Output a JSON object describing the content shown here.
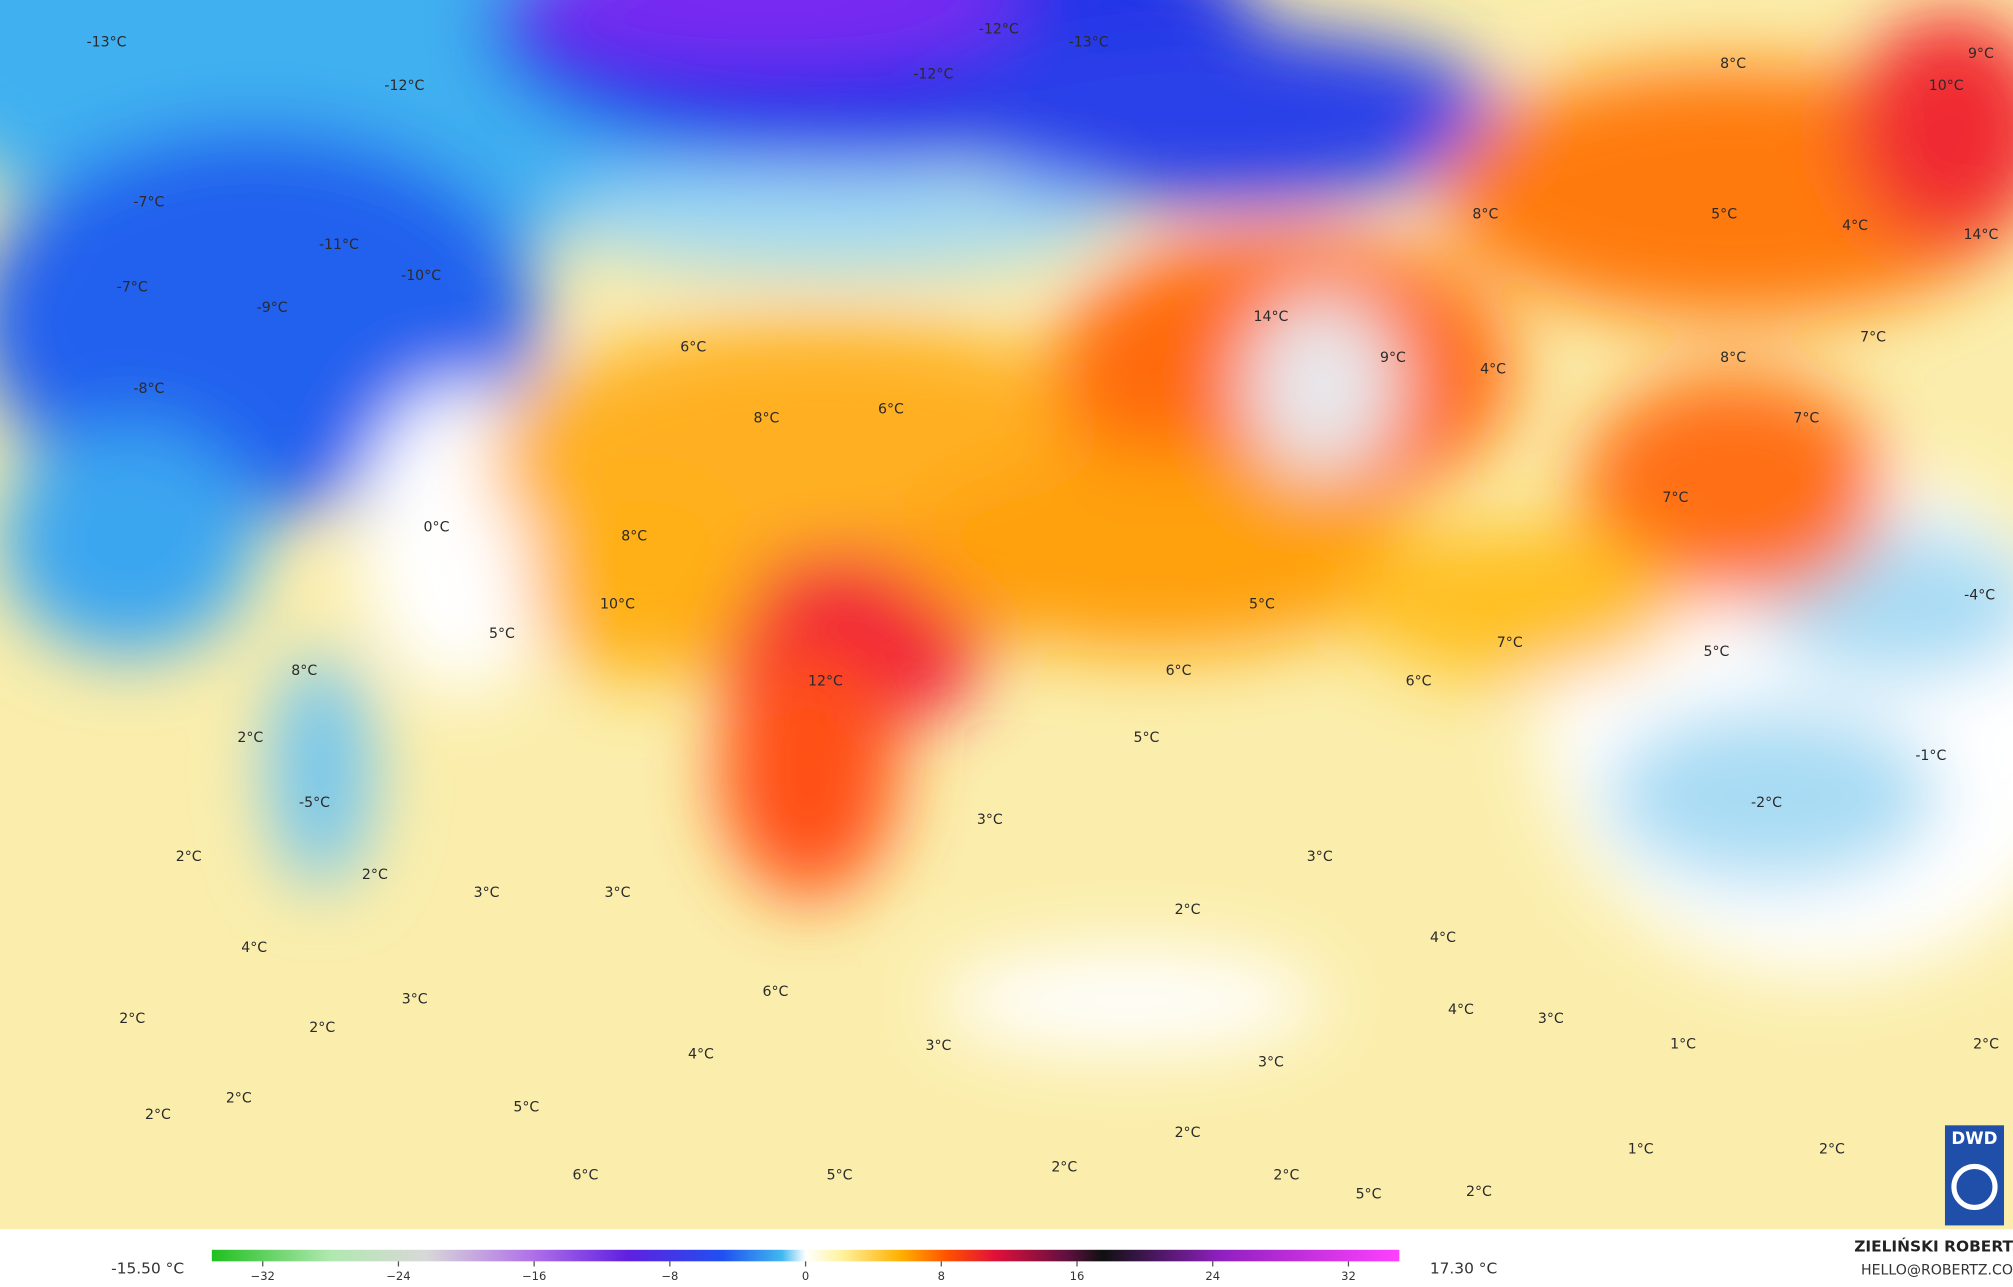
{
  "map": {
    "labels": [
      "-13°C",
      "-12°C",
      "-12°C",
      "-12°C",
      "-13°C",
      "8°C",
      "9°C",
      "10°C",
      "-7°C",
      "-11°C",
      "-10°C",
      "-7°C",
      "-9°C",
      "-8°C",
      "8°C",
      "5°C",
      "4°C",
      "14°C",
      "14°C",
      "9°C",
      "4°C",
      "6°C",
      "8°C",
      "6°C",
      "8°C",
      "7°C",
      "7°C",
      "0°C",
      "8°C",
      "10°C",
      "5°C",
      "7°C",
      "5°C",
      "7°C",
      "-4°C",
      "8°C",
      "12°C",
      "6°C",
      "6°C",
      "5°C",
      "2°C",
      "5°C",
      "-1°C",
      "-5°C",
      "-2°C",
      "3°C",
      "2°C",
      "2°C",
      "3°C",
      "3°C",
      "3°C",
      "2°C",
      "4°C",
      "4°C",
      "3°C",
      "6°C",
      "2°C",
      "2°C",
      "4°C",
      "3°C",
      "1°C",
      "2°C",
      "4°C",
      "3°C",
      "3°C",
      "2°C",
      "5°C",
      "2°C",
      "2°C",
      "1°C",
      "2°C",
      "2°C",
      "6°C",
      "5°C",
      "2°C",
      "5°C",
      "2°C"
    ]
  },
  "colorbar": {
    "min_label": "-15.50 °C",
    "max_label": "17.30 °C",
    "range": [
      -35,
      35
    ],
    "ticks": [
      {
        "value": -32,
        "label": "−32"
      },
      {
        "value": -24,
        "label": "−24"
      },
      {
        "value": -16,
        "label": "−16"
      },
      {
        "value": -8,
        "label": "−8"
      },
      0,
      8,
      16,
      24,
      32
    ]
  },
  "credits": {
    "author": "ZIELIŃSKI ROBERT",
    "email": "HELLO@ROBERTZ.CO",
    "logo": "DWD"
  }
}
